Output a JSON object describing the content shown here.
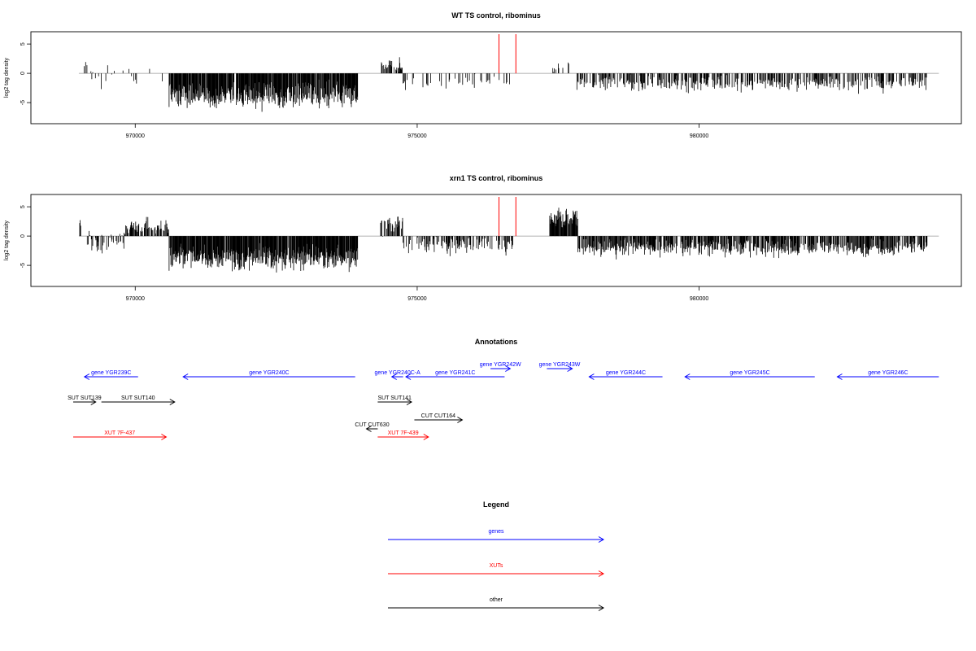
{
  "colors": {
    "genes": "#0000ff",
    "xuts": "#ff0000",
    "other": "#000000",
    "baseline": "#999999",
    "marker": "#ff0000"
  },
  "chart_data": [
    {
      "type": "bar",
      "title": "WT TS control, ribominus",
      "ylabel": "log2 tag density",
      "xlim": [
        968150,
        984650
      ],
      "ylim": [
        -8.6,
        7.1
      ],
      "xticks": [
        970000,
        975000,
        980000
      ],
      "xtick_labels": [
        "970000",
        "975000",
        "980000"
      ],
      "yticks": [
        -5,
        0,
        5
      ],
      "ytick_labels": [
        "-5",
        "0",
        "5"
      ],
      "markers_x": [
        976450,
        976750
      ],
      "regions": [
        {
          "start": 969000,
          "end": 969150,
          "density": 0.2,
          "mean": 1.0,
          "spread": 1.2
        },
        {
          "start": 969150,
          "end": 970500,
          "density": 0.13,
          "mean": -0.5,
          "spread": 1.6
        },
        {
          "start": 970600,
          "end": 973950,
          "density": 0.9,
          "mean": -3.8,
          "spread": 2.0
        },
        {
          "start": 974350,
          "end": 974750,
          "density": 0.55,
          "mean": 1.6,
          "spread": 1.3
        },
        {
          "start": 974750,
          "end": 976650,
          "density": 0.18,
          "mean": -1.5,
          "spread": 1.3
        },
        {
          "start": 977350,
          "end": 977700,
          "density": 0.22,
          "mean": 1.0,
          "spread": 0.9
        },
        {
          "start": 977800,
          "end": 984050,
          "density": 0.48,
          "mean": -1.7,
          "spread": 1.3
        }
      ]
    },
    {
      "type": "bar",
      "title": "xrn1 TS control, ribominus",
      "ylabel": "log2 tag density",
      "xlim": [
        968150,
        984650
      ],
      "ylim": [
        -8.6,
        7.1
      ],
      "xticks": [
        970000,
        975000,
        980000
      ],
      "xtick_labels": [
        "970000",
        "975000",
        "980000"
      ],
      "yticks": [
        -5,
        0,
        5
      ],
      "ytick_labels": [
        "-5",
        "0",
        "5"
      ],
      "markers_x": [
        976450,
        976750
      ],
      "regions": [
        {
          "start": 969000,
          "end": 969150,
          "density": 0.4,
          "mean": 1.5,
          "spread": 1.8
        },
        {
          "start": 969150,
          "end": 969800,
          "density": 0.5,
          "mean": -1.0,
          "spread": 1.8
        },
        {
          "start": 969800,
          "end": 970600,
          "density": 0.6,
          "mean": 1.5,
          "spread": 1.4
        },
        {
          "start": 970600,
          "end": 973950,
          "density": 0.95,
          "mean": -3.8,
          "spread": 2.0
        },
        {
          "start": 974350,
          "end": 974750,
          "density": 0.6,
          "mean": 1.8,
          "spread": 1.6
        },
        {
          "start": 974750,
          "end": 976700,
          "density": 0.5,
          "mean": -1.6,
          "spread": 1.4
        },
        {
          "start": 977350,
          "end": 977850,
          "density": 0.9,
          "mean": 3.0,
          "spread": 1.6
        },
        {
          "start": 977850,
          "end": 984050,
          "density": 0.7,
          "mean": -2.0,
          "spread": 1.4
        }
      ]
    }
  ],
  "annotations": {
    "title": "Annotations",
    "features": [
      {
        "label": "gene YGR239C",
        "kind": "gene",
        "start": 969100,
        "end": 970050,
        "strand": "-",
        "row": 0
      },
      {
        "label": "gene YGR240C",
        "kind": "gene",
        "start": 970850,
        "end": 973900,
        "strand": "-",
        "row": 0
      },
      {
        "label": "gene YGR240C-A",
        "kind": "gene",
        "start": 974550,
        "end": 974750,
        "strand": "-",
        "row": 0
      },
      {
        "label": "gene YGR241C",
        "kind": "gene",
        "start": 974800,
        "end": 976550,
        "strand": "-",
        "row": 0
      },
      {
        "label": "gene YGR242W",
        "kind": "gene",
        "start": 976300,
        "end": 976650,
        "strand": "+",
        "row": -1
      },
      {
        "label": "gene YGR243W",
        "kind": "gene",
        "start": 977300,
        "end": 977750,
        "strand": "+",
        "row": -1
      },
      {
        "label": "gene YGR244C",
        "kind": "gene",
        "start": 978050,
        "end": 979350,
        "strand": "-",
        "row": 0
      },
      {
        "label": "gene YGR245C",
        "kind": "gene",
        "start": 979750,
        "end": 982050,
        "strand": "-",
        "row": 0
      },
      {
        "label": "gene YGR246C",
        "kind": "gene",
        "start": 982450,
        "end": 984250,
        "strand": "-",
        "row": 0
      },
      {
        "label": "SUT SUT139",
        "kind": "other",
        "start": 968900,
        "end": 969300,
        "strand": "+",
        "row": 1
      },
      {
        "label": "SUT SUT140",
        "kind": "other",
        "start": 969400,
        "end": 970700,
        "strand": "+",
        "row": 1
      },
      {
        "label": "SUT SUT141",
        "kind": "other",
        "start": 974300,
        "end": 974900,
        "strand": "+",
        "row": 1
      },
      {
        "label": "CUT CUT164",
        "kind": "other",
        "start": 974950,
        "end": 975800,
        "strand": "+",
        "row": 2
      },
      {
        "label": "CUT CUT630",
        "kind": "other",
        "start": 974100,
        "end": 974300,
        "strand": "-",
        "row": 3
      },
      {
        "label": "XUT 7F-437",
        "kind": "xut",
        "start": 968900,
        "end": 970550,
        "strand": "+",
        "row": 4
      },
      {
        "label": "XUT 7F-439",
        "kind": "xut",
        "start": 974300,
        "end": 975200,
        "strand": "+",
        "row": 4
      }
    ]
  },
  "legend": {
    "title": "Legend",
    "items": [
      {
        "label": "genes",
        "kind": "gene"
      },
      {
        "label": "XUTs",
        "kind": "xut"
      },
      {
        "label": "other",
        "kind": "other"
      }
    ]
  }
}
